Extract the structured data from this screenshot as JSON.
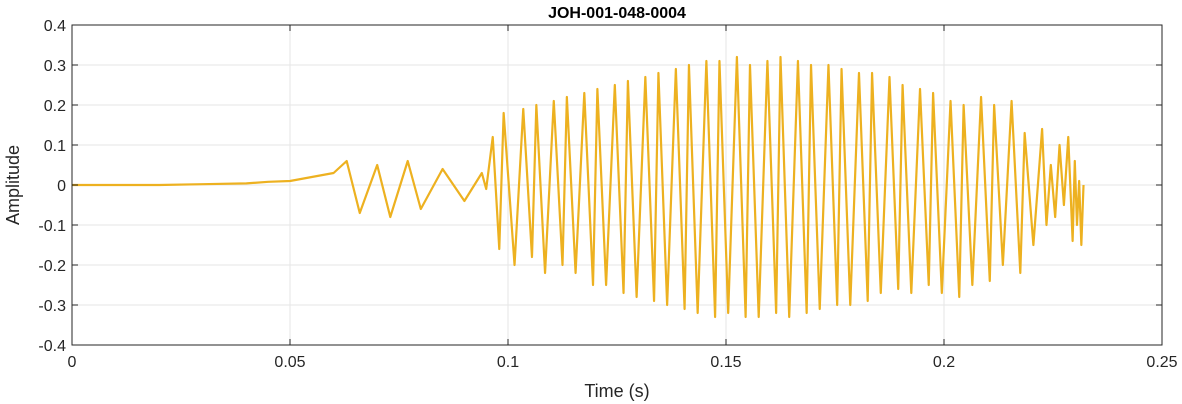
{
  "chart_data": {
    "type": "line",
    "title": "JOH-001-048-0004",
    "xlabel": "Time (s)",
    "ylabel": "Amplitude",
    "xlim": [
      0,
      0.25
    ],
    "ylim": [
      -0.4,
      0.4
    ],
    "x_ticks": [
      0,
      0.05,
      0.1,
      0.15,
      0.2,
      0.25
    ],
    "x_tick_labels": [
      "0",
      "0.05",
      "0.1",
      "0.15",
      "0.2",
      "0.25"
    ],
    "y_ticks": [
      -0.4,
      -0.3,
      -0.2,
      -0.1,
      0,
      0.1,
      0.2,
      0.3,
      0.4
    ],
    "y_tick_labels": [
      "-0.4",
      "-0.3",
      "-0.2",
      "-0.1",
      "0",
      "0.1",
      "0.2",
      "0.3",
      "0.4"
    ],
    "grid": true,
    "line_color": "#EDB120",
    "series": [
      {
        "name": "",
        "x": [
          0.0,
          0.01,
          0.02,
          0.03,
          0.04,
          0.045,
          0.05,
          0.055,
          0.06,
          0.063,
          0.066,
          0.07,
          0.073,
          0.077,
          0.08,
          0.085,
          0.09,
          0.094,
          0.095,
          0.0965,
          0.098,
          0.099,
          0.1015,
          0.1035,
          0.1055,
          0.1065,
          0.1085,
          0.1105,
          0.1125,
          0.1135,
          0.1155,
          0.1175,
          0.1195,
          0.1205,
          0.1225,
          0.1245,
          0.1265,
          0.1275,
          0.1295,
          0.1315,
          0.1335,
          0.1345,
          0.1365,
          0.1385,
          0.1405,
          0.1415,
          0.1435,
          0.1455,
          0.1475,
          0.1485,
          0.1505,
          0.1525,
          0.1545,
          0.1555,
          0.1575,
          0.1595,
          0.1615,
          0.1625,
          0.1645,
          0.1665,
          0.1685,
          0.1695,
          0.1715,
          0.1735,
          0.1755,
          0.1765,
          0.1785,
          0.1805,
          0.1825,
          0.1835,
          0.1855,
          0.1875,
          0.1895,
          0.1905,
          0.1925,
          0.1945,
          0.1965,
          0.1975,
          0.1995,
          0.2015,
          0.2035,
          0.2045,
          0.2065,
          0.2085,
          0.2105,
          0.2115,
          0.2135,
          0.2155,
          0.2175,
          0.2185,
          0.2205,
          0.2225,
          0.2235,
          0.2245,
          0.2255,
          0.2265,
          0.2275,
          0.2285,
          0.2295,
          0.23,
          0.2305,
          0.231,
          0.2315,
          0.232
        ],
        "y": [
          0.0,
          0.0,
          0.0,
          0.002,
          0.004,
          0.008,
          0.01,
          0.02,
          0.03,
          0.06,
          -0.07,
          0.05,
          -0.08,
          0.06,
          -0.06,
          0.04,
          -0.04,
          0.03,
          -0.01,
          0.12,
          -0.16,
          0.18,
          -0.2,
          0.19,
          -0.18,
          0.2,
          -0.22,
          0.21,
          -0.2,
          0.22,
          -0.22,
          0.23,
          -0.25,
          0.24,
          -0.25,
          0.25,
          -0.27,
          0.26,
          -0.28,
          0.27,
          -0.29,
          0.28,
          -0.3,
          0.29,
          -0.31,
          0.3,
          -0.32,
          0.31,
          -0.33,
          0.31,
          -0.32,
          0.32,
          -0.33,
          0.3,
          -0.33,
          0.31,
          -0.32,
          0.32,
          -0.33,
          0.31,
          -0.32,
          0.3,
          -0.31,
          0.3,
          -0.3,
          0.29,
          -0.3,
          0.28,
          -0.29,
          0.28,
          -0.27,
          0.27,
          -0.26,
          0.25,
          -0.27,
          0.24,
          -0.25,
          0.23,
          -0.27,
          0.21,
          -0.28,
          0.2,
          -0.25,
          0.22,
          -0.24,
          0.2,
          -0.2,
          0.21,
          -0.22,
          0.13,
          -0.15,
          0.14,
          -0.1,
          0.05,
          -0.08,
          0.1,
          -0.05,
          0.12,
          -0.14,
          0.06,
          -0.1,
          0.01,
          -0.15,
          0.0
        ]
      }
    ]
  }
}
